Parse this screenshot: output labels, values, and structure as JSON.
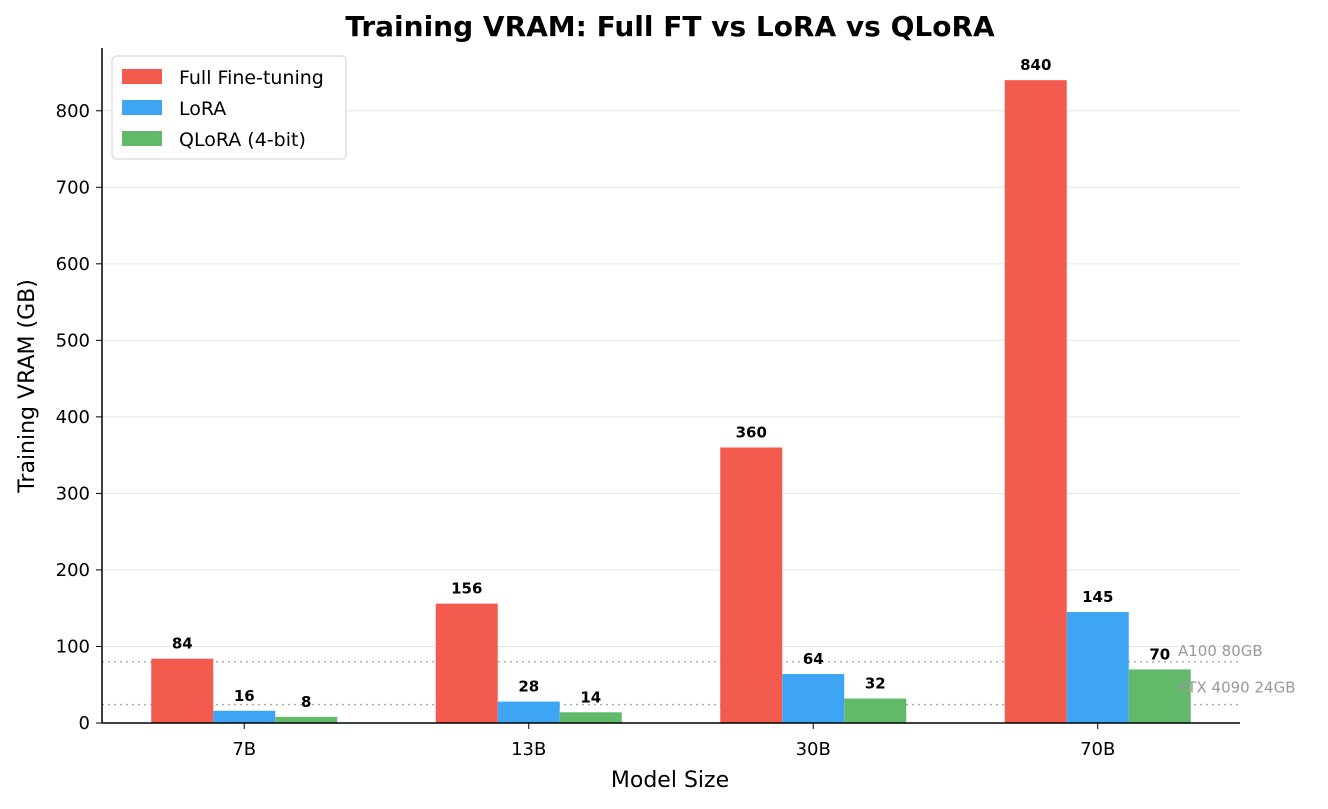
{
  "chart_data": {
    "type": "bar",
    "title": "Training VRAM: Full FT vs LoRA vs QLoRA",
    "xlabel": "Model Size",
    "ylabel": "Training VRAM (GB)",
    "categories": [
      "7B",
      "13B",
      "30B",
      "70B"
    ],
    "series": [
      {
        "name": "Full Fine-tuning",
        "color": "#F45B4F",
        "values": [
          84,
          156,
          360,
          840
        ]
      },
      {
        "name": "LoRA",
        "color": "#3DA5F4",
        "values": [
          16,
          28,
          64,
          145
        ]
      },
      {
        "name": "QLoRA (4-bit)",
        "color": "#63B96A",
        "values": [
          8,
          14,
          32,
          70
        ]
      }
    ],
    "ylim": [
      0,
      882
    ],
    "yticks": [
      0,
      100,
      200,
      300,
      400,
      500,
      600,
      700,
      800
    ],
    "grid": "horizontal",
    "legend_position": "top-left",
    "reference_lines": [
      {
        "label": "A100 80GB",
        "value": 80,
        "color": "#AAAAAA"
      },
      {
        "label": "RTX 4090 24GB",
        "value": 24,
        "color": "#AAAAAA"
      }
    ]
  }
}
